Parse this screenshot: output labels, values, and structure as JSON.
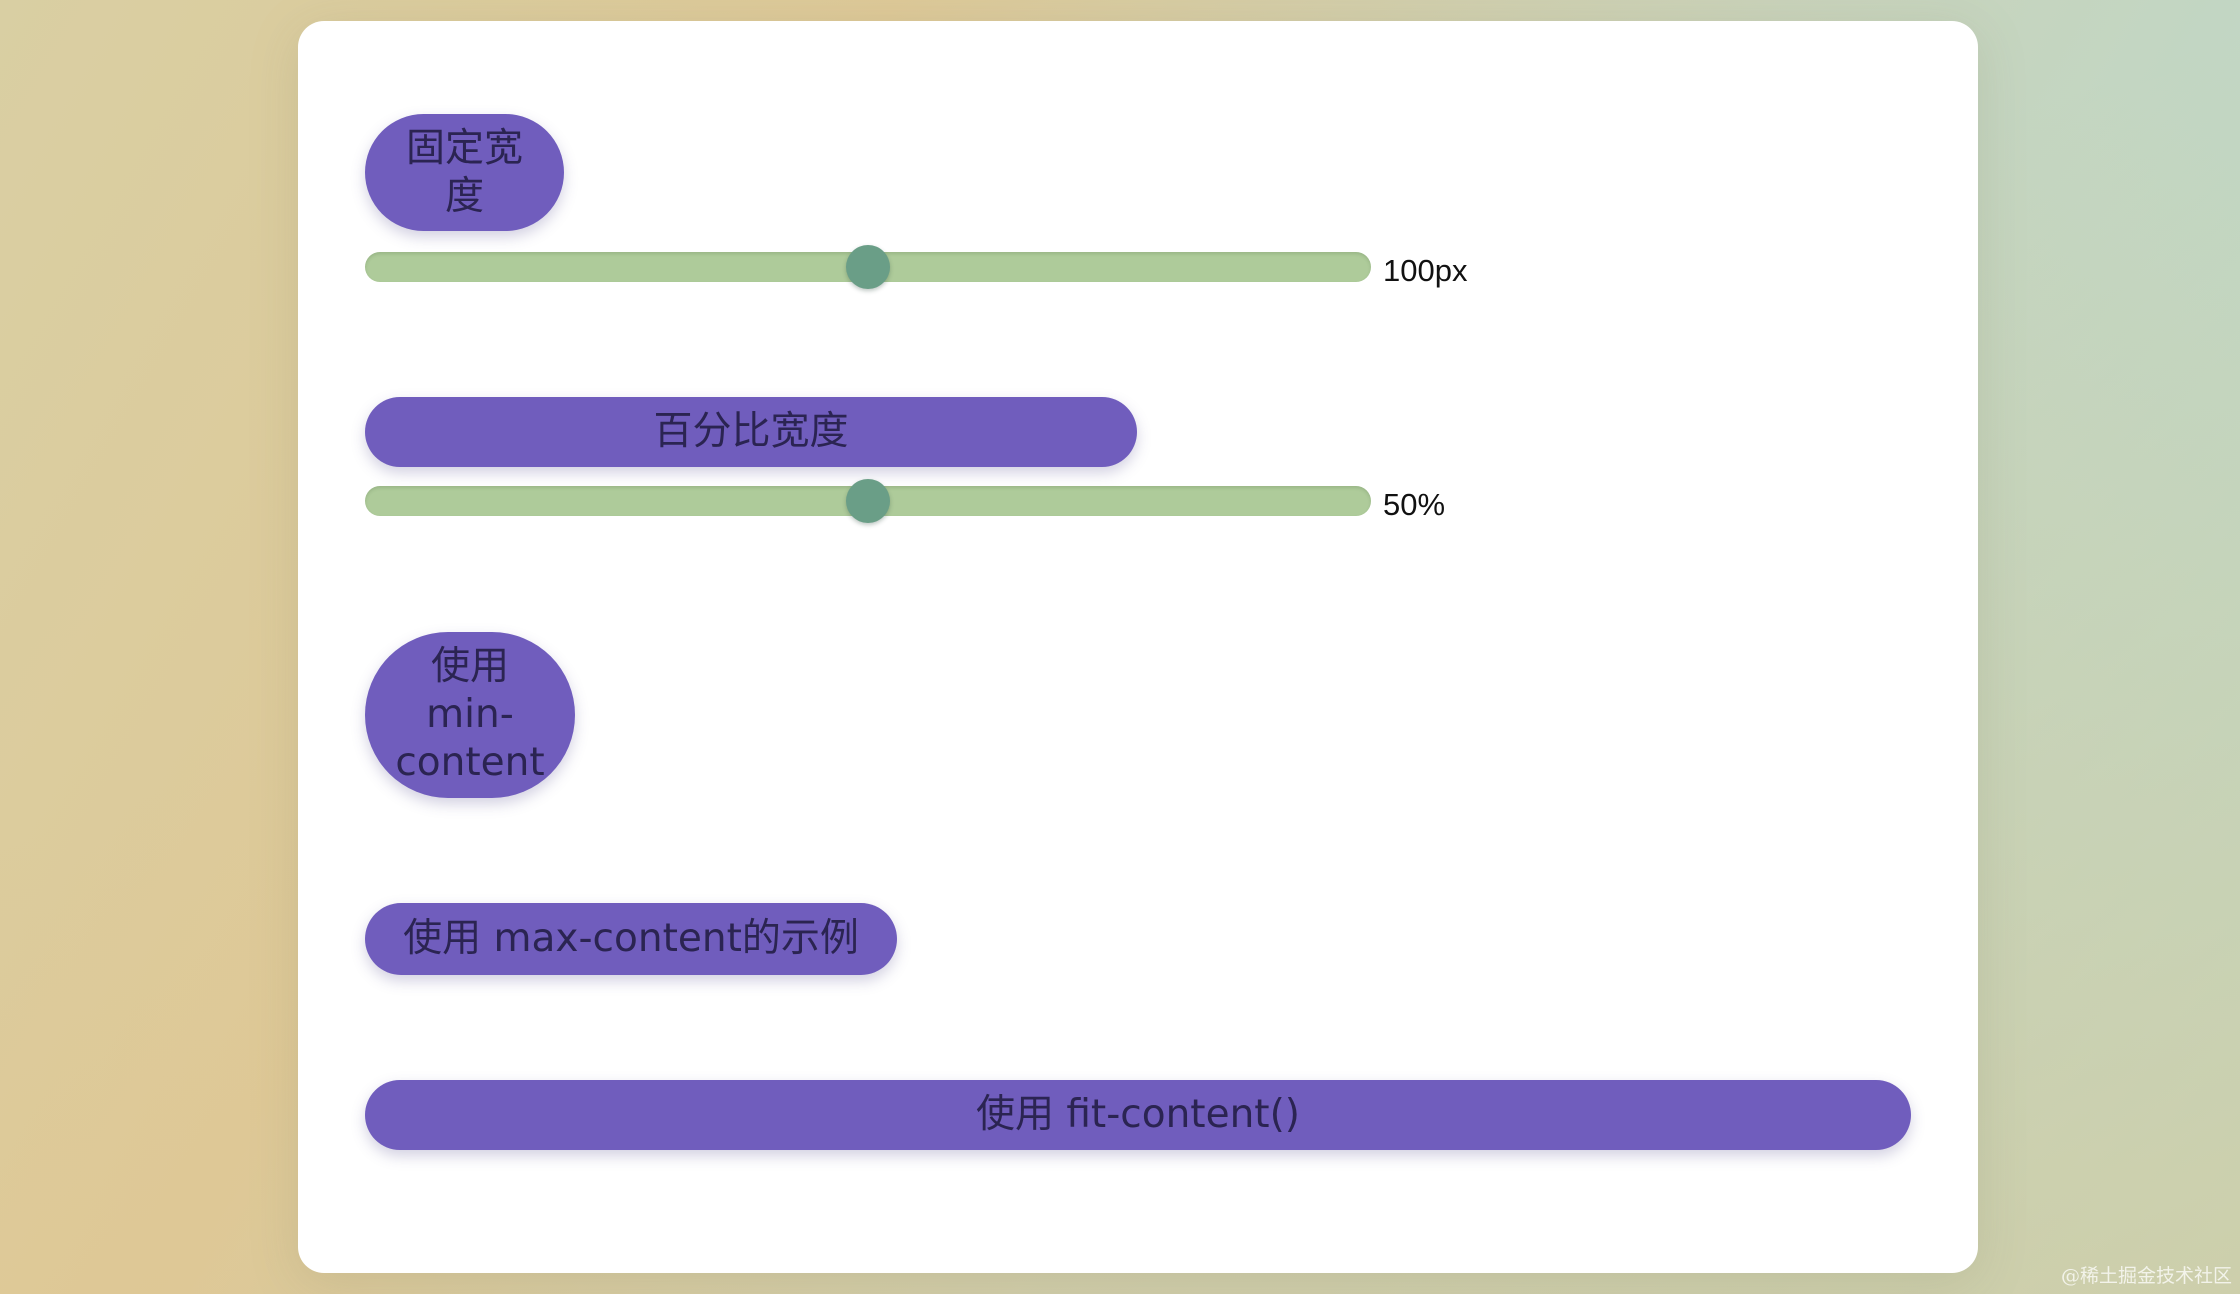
{
  "examples": {
    "fixed": {
      "label_line1": "固定宽",
      "label_line2": "度",
      "slider_value_label": "100px",
      "slider_fraction": 0.5
    },
    "percent": {
      "label": "百分比宽度",
      "slider_value_label": "50%",
      "slider_fraction": 0.5
    },
    "min_content": {
      "label_line1": "使用",
      "label_line2": "min-",
      "label_line3": "content"
    },
    "max_content": {
      "label": "使用 max-content的示例"
    },
    "fit_content": {
      "label": "使用 fit-content()"
    }
  },
  "watermark": "@稀土掘金技术社区",
  "colors": {
    "pill": "#705dbd",
    "pill_text": "#2b2452",
    "slider_track": "#aecb9a",
    "slider_thumb": "#6a9e87",
    "card": "#ffffff"
  }
}
